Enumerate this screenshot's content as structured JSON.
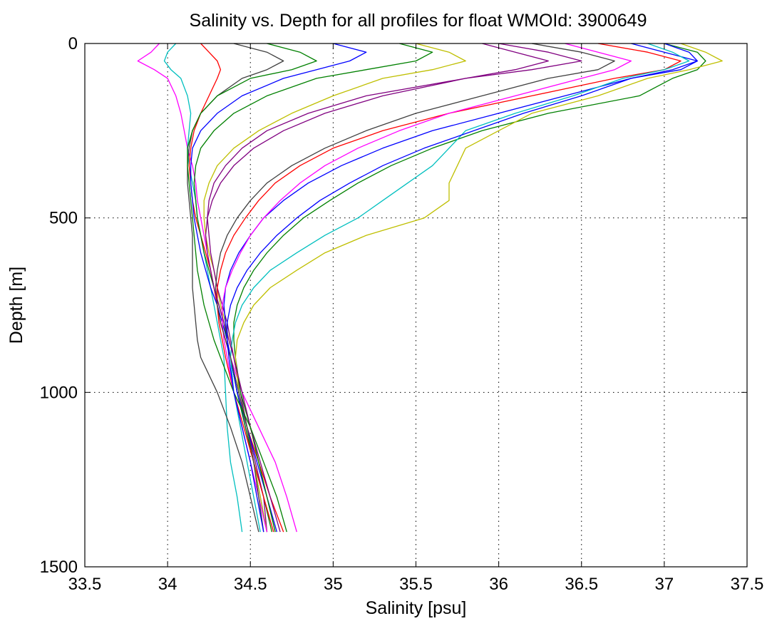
{
  "chart_data": {
    "type": "line",
    "title": "Salinity vs. Depth for all profiles for float WMOId: 3900649",
    "xlabel": "Salinity [psu]",
    "ylabel": "Depth [m]",
    "xlim": [
      33.5,
      37.5
    ],
    "ylim": [
      0,
      1500
    ],
    "y_reversed": true,
    "grid": true,
    "legend": "none",
    "x_ticks": [
      "33.5",
      "34",
      "34.5",
      "35",
      "35.5",
      "36",
      "36.5",
      "37",
      "37.5"
    ],
    "y_ticks": [
      "0",
      "500",
      "1000",
      "1500"
    ],
    "depth": [
      0,
      25,
      50,
      75,
      100,
      150,
      200,
      250,
      300,
      350,
      400,
      450,
      500,
      550,
      600,
      650,
      700,
      750,
      800,
      850,
      900,
      1000,
      1100,
      1200,
      1300,
      1400
    ],
    "series": [
      {
        "color": "#ff00ff",
        "values": [
          33.95,
          33.9,
          33.82,
          33.92,
          34.0,
          34.05,
          34.08,
          34.1,
          34.12,
          34.15,
          34.17,
          34.18,
          34.2,
          34.22,
          34.24,
          34.26,
          34.28,
          34.3,
          34.32,
          34.35,
          34.38,
          34.45,
          34.55,
          34.65,
          34.72,
          34.78
        ]
      },
      {
        "color": "#00bfbf",
        "values": [
          34.05,
          34.0,
          33.98,
          34.02,
          34.08,
          34.12,
          34.14,
          34.13,
          34.12,
          34.13,
          34.15,
          34.17,
          34.18,
          34.2,
          34.22,
          34.24,
          34.26,
          34.28,
          34.3,
          34.32,
          34.34,
          34.35,
          34.36,
          34.38,
          34.42,
          34.45
        ]
      },
      {
        "color": "#ff0000",
        "values": [
          34.2,
          34.25,
          34.3,
          34.32,
          34.3,
          34.25,
          34.2,
          34.16,
          34.14,
          34.13,
          34.14,
          34.15,
          34.17,
          34.2,
          34.23,
          34.26,
          34.28,
          34.3,
          34.32,
          34.35,
          34.38,
          34.42,
          34.48,
          34.55,
          34.62,
          34.7
        ]
      },
      {
        "color": "#404040",
        "values": [
          34.4,
          34.6,
          34.7,
          34.6,
          34.45,
          34.3,
          34.2,
          34.15,
          34.13,
          34.12,
          34.12,
          34.13,
          34.14,
          34.15,
          34.15,
          34.15,
          34.15,
          34.16,
          34.17,
          34.18,
          34.2,
          34.3,
          34.38,
          34.45,
          34.5,
          34.55
        ]
      },
      {
        "color": "#0000ff",
        "values": [
          35.0,
          35.2,
          35.1,
          34.9,
          34.7,
          34.45,
          34.3,
          34.2,
          34.15,
          34.14,
          34.14,
          34.15,
          34.16,
          34.18,
          34.2,
          34.23,
          34.26,
          34.3,
          34.33,
          34.36,
          34.38,
          34.42,
          34.47,
          34.52,
          34.56,
          34.6
        ]
      },
      {
        "color": "#008000",
        "values": [
          35.4,
          35.6,
          35.5,
          35.2,
          34.9,
          34.6,
          34.4,
          34.28,
          34.2,
          34.17,
          34.16,
          34.17,
          34.18,
          34.2,
          34.22,
          34.25,
          34.28,
          34.31,
          34.34,
          34.36,
          34.38,
          34.42,
          34.47,
          34.52,
          34.58,
          34.63
        ]
      },
      {
        "color": "#bfbf00",
        "values": [
          35.5,
          35.7,
          35.8,
          35.6,
          35.3,
          35.0,
          34.75,
          34.55,
          34.4,
          34.3,
          34.25,
          34.22,
          34.22,
          34.23,
          34.25,
          34.28,
          34.3,
          34.32,
          34.35,
          34.37,
          34.4,
          34.44,
          34.5,
          34.55,
          34.6,
          34.65
        ]
      },
      {
        "color": "#800080",
        "values": [
          36.0,
          36.3,
          36.5,
          36.2,
          35.8,
          35.2,
          34.85,
          34.6,
          34.45,
          34.35,
          34.28,
          34.25,
          34.24,
          34.25,
          34.26,
          34.28,
          34.3,
          34.33,
          34.36,
          34.38,
          34.4,
          34.44,
          34.48,
          34.53,
          34.58,
          34.6
        ]
      },
      {
        "color": "#ff0000",
        "values": [
          36.6,
          36.9,
          37.1,
          37.0,
          36.7,
          36.2,
          35.7,
          35.3,
          35.0,
          34.8,
          34.65,
          34.55,
          34.47,
          34.4,
          34.35,
          34.32,
          34.3,
          34.3,
          34.31,
          34.33,
          34.35,
          34.4,
          34.46,
          34.52,
          34.58,
          34.64
        ]
      },
      {
        "color": "#0000ff",
        "values": [
          36.8,
          37.0,
          37.2,
          37.1,
          36.8,
          36.4,
          36.0,
          35.6,
          35.3,
          35.05,
          34.85,
          34.7,
          34.58,
          34.5,
          34.43,
          34.38,
          34.35,
          34.34,
          34.35,
          34.36,
          34.38,
          34.42,
          34.48,
          34.54,
          34.6,
          34.66
        ]
      },
      {
        "color": "#008000",
        "values": [
          37.0,
          37.2,
          37.25,
          37.2,
          37.05,
          36.85,
          36.3,
          35.9,
          35.6,
          35.35,
          35.15,
          34.98,
          34.82,
          34.7,
          34.6,
          34.52,
          34.46,
          34.42,
          34.4,
          34.4,
          34.41,
          34.44,
          34.5,
          34.55,
          34.6,
          34.65
        ]
      },
      {
        "color": "#bfbf00",
        "values": [
          37.1,
          37.25,
          37.35,
          37.15,
          36.9,
          36.6,
          36.2,
          36.0,
          35.8,
          35.75,
          35.7,
          35.7,
          35.55,
          35.2,
          34.95,
          34.78,
          34.62,
          34.52,
          34.46,
          34.42,
          34.41,
          34.43,
          34.48,
          34.52,
          34.56,
          34.6
        ]
      },
      {
        "color": "#00bfbf",
        "values": [
          36.9,
          37.05,
          37.15,
          37.0,
          36.75,
          36.45,
          36.1,
          35.8,
          35.7,
          35.6,
          35.45,
          35.3,
          35.15,
          34.95,
          34.78,
          34.62,
          34.52,
          34.45,
          34.41,
          34.39,
          34.38,
          34.4,
          34.44,
          34.48,
          34.52,
          34.56
        ]
      },
      {
        "color": "#ff00ff",
        "values": [
          36.4,
          36.6,
          36.8,
          36.7,
          36.5,
          36.1,
          35.7,
          35.4,
          35.15,
          34.95,
          34.8,
          34.68,
          34.58,
          34.5,
          34.44,
          34.39,
          34.35,
          34.33,
          34.33,
          34.34,
          34.36,
          34.4,
          34.45,
          34.5,
          34.55,
          34.6
        ]
      },
      {
        "color": "#404040",
        "values": [
          36.2,
          36.5,
          36.7,
          36.6,
          36.3,
          35.9,
          35.5,
          35.2,
          34.95,
          34.75,
          34.6,
          34.5,
          34.42,
          34.36,
          34.32,
          34.3,
          34.29,
          34.3,
          34.32,
          34.35,
          34.38,
          34.43,
          34.48,
          34.52,
          34.55,
          34.58
        ]
      },
      {
        "color": "#800080",
        "values": [
          35.9,
          36.1,
          36.3,
          36.1,
          35.8,
          35.3,
          34.95,
          34.7,
          34.52,
          34.4,
          34.32,
          34.27,
          34.24,
          34.23,
          34.24,
          34.26,
          34.28,
          34.31,
          34.34,
          34.37,
          34.4,
          34.45,
          34.5,
          34.56,
          34.62,
          34.68
        ]
      },
      {
        "color": "#008000",
        "values": [
          34.6,
          34.8,
          34.9,
          34.75,
          34.5,
          34.3,
          34.2,
          34.15,
          34.12,
          34.12,
          34.13,
          34.14,
          34.15,
          34.16,
          34.17,
          34.18,
          34.2,
          34.22,
          34.25,
          34.28,
          34.32,
          34.4,
          34.5,
          34.58,
          34.66,
          34.72
        ]
      },
      {
        "color": "#0000ff",
        "values": [
          37.0,
          37.15,
          37.2,
          37.05,
          36.8,
          36.5,
          36.15,
          35.85,
          35.55,
          35.3,
          35.1,
          34.92,
          34.78,
          34.66,
          34.56,
          34.48,
          34.42,
          34.38,
          34.36,
          34.36,
          34.37,
          34.4,
          34.45,
          34.5,
          34.54,
          34.58
        ]
      }
    ]
  }
}
